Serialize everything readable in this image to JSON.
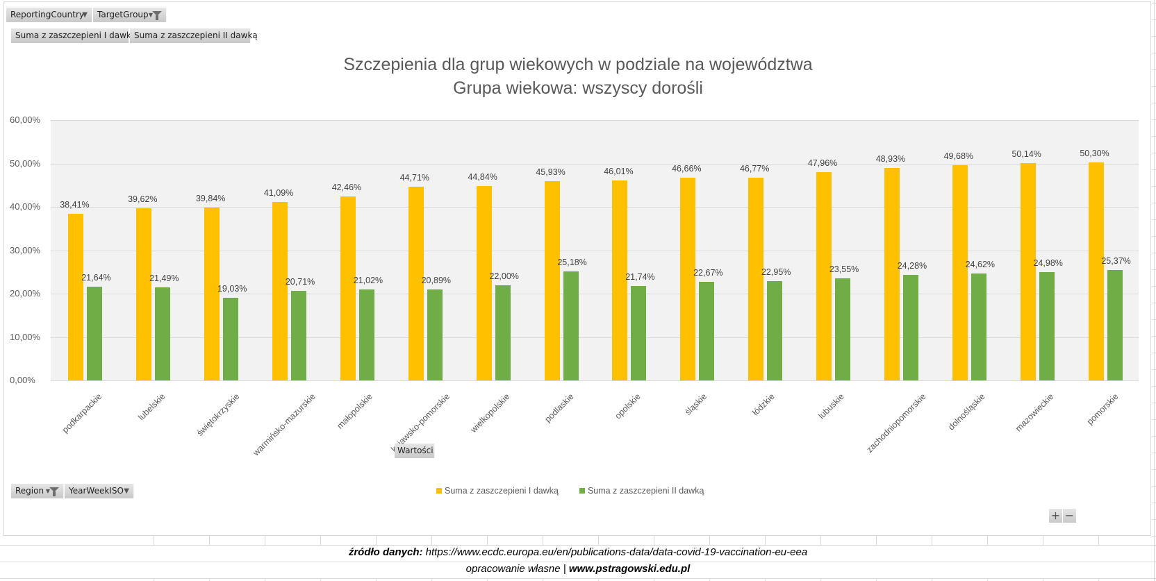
{
  "pivot_fields": {
    "filters": [
      {
        "label": "ReportingCountry",
        "icon": "dropdown-arrow-icon"
      },
      {
        "label": "TargetGroup",
        "icon": "filter-icon"
      }
    ],
    "values": [
      {
        "label": "Suma z zaszczepieni I dawką"
      },
      {
        "label": "Suma z zaszczepieni II dawką"
      }
    ],
    "values_header": "Wartości",
    "axis": [
      {
        "label": "Region",
        "icon": "filter-icon"
      },
      {
        "label": "YearWeekISO",
        "icon": "dropdown-arrow-icon"
      }
    ]
  },
  "zoom_controls": {
    "plus": "+",
    "minus": "−"
  },
  "colors": {
    "dose1": "#FFC000",
    "dose2": "#70AD47",
    "plot_bg": "#F2F2F2",
    "gridline": "#D9D9D9"
  },
  "chart_data": {
    "type": "bar",
    "title": "Szczepienia dla grup wiekowych w podziale na województwa",
    "subtitle": "Grupa wiekowa: wszyscy dorośli",
    "xlabel": "",
    "ylabel": "",
    "ylim": [
      0,
      60
    ],
    "yticks": [
      "0,00%",
      "10,00%",
      "20,00%",
      "30,00%",
      "40,00%",
      "50,00%",
      "60,00%"
    ],
    "grid": true,
    "legend_position": "bottom",
    "categories": [
      "podkarpackie",
      "lubelskie",
      "świętokrzyskie",
      "warmińsko-mazurskie",
      "małopolskie",
      "kujawsko-pomorskie",
      "wielkopolskie",
      "podlaskie",
      "opolskie",
      "śląskie",
      "łódzkie",
      "lubuskie",
      "zachodniopomorskie",
      "dolnośląskie",
      "mazowieckie",
      "pomorskie"
    ],
    "series": [
      {
        "name": "Suma z zaszczepieni I dawką",
        "color": "#FFC000",
        "values": [
          38.41,
          39.62,
          39.84,
          41.09,
          42.46,
          44.71,
          44.84,
          45.93,
          46.01,
          46.66,
          46.77,
          47.96,
          48.93,
          49.68,
          50.14,
          50.3
        ],
        "labels": [
          "38,41%",
          "39,62%",
          "39,84%",
          "41,09%",
          "42,46%",
          "44,71%",
          "44,84%",
          "45,93%",
          "46,01%",
          "46,66%",
          "46,77%",
          "47,96%",
          "48,93%",
          "49,68%",
          "50,14%",
          "50,30%"
        ]
      },
      {
        "name": "Suma z zaszczepieni II dawką",
        "color": "#70AD47",
        "values": [
          21.64,
          21.49,
          19.03,
          20.71,
          21.02,
          20.89,
          22.0,
          25.18,
          21.74,
          22.67,
          22.95,
          23.55,
          24.28,
          24.62,
          24.98,
          25.37
        ],
        "labels": [
          "21,64%",
          "21,49%",
          "19,03%",
          "20,71%",
          "21,02%",
          "20,89%",
          "22,00%",
          "25,18%",
          "21,74%",
          "22,67%",
          "22,95%",
          "23,55%",
          "24,28%",
          "24,62%",
          "24,98%",
          "25,37%"
        ]
      }
    ]
  },
  "footer": {
    "source_label": "źródło danych:",
    "source_url": "https://www.ecdc.europa.eu/en/publications-data/data-covid-19-vaccination-eu-eea",
    "credit_label": "opracowanie własne |",
    "credit_site": "www.pstragowski.edu.pl"
  }
}
